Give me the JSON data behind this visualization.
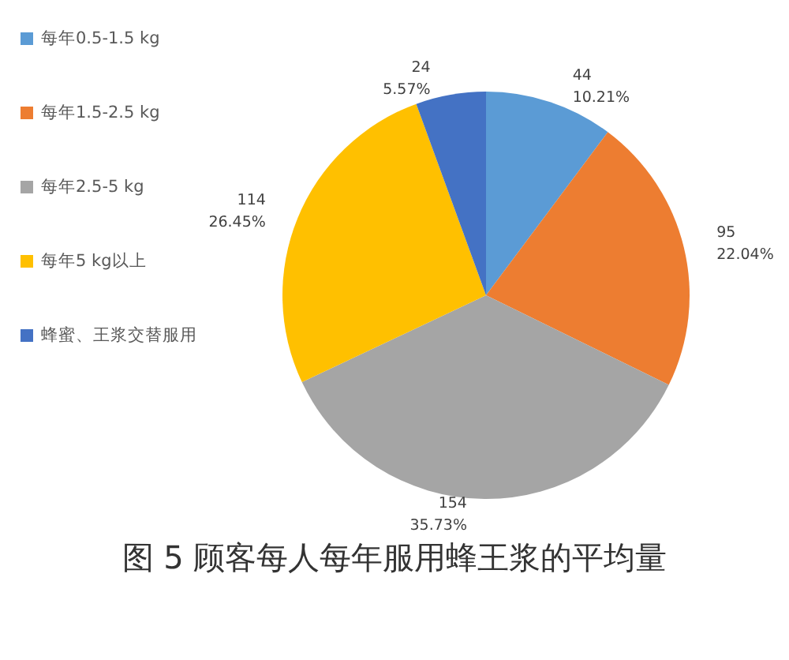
{
  "chart_data": {
    "type": "pie",
    "title": "图 5 顾客每人每年服用蜂王浆的平均量",
    "categories": [
      "每年0.5-1.5 kg",
      "每年1.5-2.5 kg",
      "每年2.5-5 kg",
      "每年5 kg以上",
      "蜂蜜、王浆交替服用"
    ],
    "values": [
      44,
      95,
      154,
      114,
      24
    ],
    "colors": [
      "#5b9bd5",
      "#ed7d31",
      "#a5a5a5",
      "#ffc000",
      "#4472c4"
    ],
    "value_labels": [
      "44\n10.21%",
      "95\n22.04%",
      "154\n35.73%",
      "114\n26.45%",
      "24\n5.57%"
    ],
    "legend": "left"
  }
}
